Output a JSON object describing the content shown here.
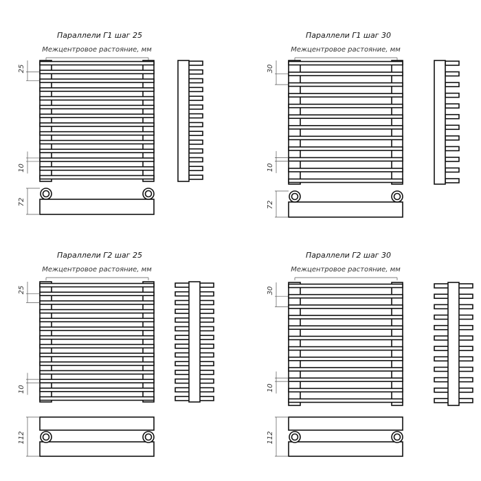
{
  "line_color": "#111111",
  "panels": [
    {
      "id": "g1-25",
      "title": "Параллели Г1 шаг 25",
      "center_distance_label": "Межцентровое растояние, мм",
      "step_label": "25",
      "gap_label": "10",
      "depth_label": "72",
      "bar_count": 14,
      "type": "G1"
    },
    {
      "id": "g1-30",
      "title": "Параллели Г1 шаг 30",
      "center_distance_label": "Межцентровое растояние, мм",
      "step_label": "30",
      "gap_label": "10",
      "depth_label": "72",
      "bar_count": 12,
      "type": "G1"
    },
    {
      "id": "g2-25",
      "title": "Параллели Г2 шаг 25",
      "center_distance_label": "Межцентровое растояние, мм",
      "step_label": "25",
      "gap_label": "10",
      "depth_label": "112",
      "bar_count": 14,
      "type": "G2"
    },
    {
      "id": "g2-30",
      "title": "Параллели Г2 шаг 30",
      "center_distance_label": "Межцентровое растояние, мм",
      "step_label": "30",
      "gap_label": "10",
      "depth_label": "112",
      "bar_count": 12,
      "type": "G2"
    }
  ]
}
